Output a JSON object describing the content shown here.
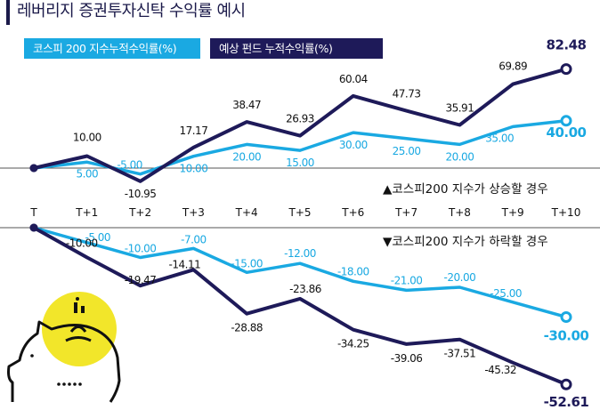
{
  "title": "레버리지 증권투자신탁 수익률 예시",
  "colors": {
    "kospi": "#1aa9e2",
    "fund": "#1e1a59",
    "text": "#111111",
    "yellow": "#f2e62a"
  },
  "legend": {
    "kospi": "코스피 200 지수누적수익률(%)",
    "fund": "예상 펀드 누적수익률(%)"
  },
  "labels": {
    "up": "▲코스피200 지수가 상승할 경우",
    "down": "▼코스피200 지수가 하락할 경우"
  },
  "icon": "piggy-bank-icon",
  "chart_data": [
    {
      "type": "line",
      "title": "",
      "scenario": "▲코스피200 지수가 상승할 경우",
      "categories": [
        "T",
        "T+1",
        "T+2",
        "T+3",
        "T+4",
        "T+5",
        "T+6",
        "T+7",
        "T+8",
        "T+9",
        "T+10"
      ],
      "series": [
        {
          "name": "코스피 200 지수누적수익률(%)",
          "values": [
            0,
            5.0,
            -5.0,
            10.0,
            20.0,
            15.0,
            30.0,
            25.0,
            20.0,
            35.0,
            40.0
          ],
          "labels": [
            "",
            "5.00",
            "-5.00",
            "10.00",
            "20.00",
            "15.00",
            "30.00",
            "25.00",
            "20.00",
            "35.00",
            "40.00"
          ]
        },
        {
          "name": "예상 펀드 누적수익률(%)",
          "values": [
            0,
            10.0,
            -10.95,
            17.17,
            38.47,
            26.93,
            60.04,
            47.73,
            35.91,
            69.89,
            82.48
          ],
          "labels": [
            "",
            "10.00",
            "-10.95",
            "17.17",
            "38.47",
            "26.93",
            "60.04",
            "47.73",
            "35.91",
            "69.89",
            "82.48"
          ]
        }
      ]
    },
    {
      "type": "line",
      "title": "",
      "scenario": "▼코스피200 지수가 하락할 경우",
      "categories": [
        "T",
        "T+1",
        "T+2",
        "T+3",
        "T+4",
        "T+5",
        "T+6",
        "T+7",
        "T+8",
        "T+9",
        "T+10"
      ],
      "series": [
        {
          "name": "코스피 200 지수누적수익률(%)",
          "values": [
            0,
            -5.0,
            -10.0,
            -7.0,
            -15.0,
            -12.0,
            -18.0,
            -21.0,
            -20.0,
            -25.0,
            -30.0
          ],
          "labels": [
            "",
            "-5.00",
            "-10.00",
            "-7.00",
            "-15.00",
            "-12.00",
            "-18.00",
            "-21.00",
            "-20.00",
            "-25.00",
            "-30.00"
          ]
        },
        {
          "name": "예상 펀드 누적수익률(%)",
          "values": [
            0,
            -10.0,
            -19.47,
            -14.11,
            -28.88,
            -23.86,
            -34.25,
            -39.06,
            -37.51,
            -45.32,
            -52.61
          ],
          "labels": [
            "",
            "-10.00",
            "-19.47",
            "-14.11",
            "-28.88",
            "-23.86",
            "-34.25",
            "-39.06",
            "-37.51",
            "-45.32",
            "-52.61"
          ]
        }
      ]
    }
  ]
}
